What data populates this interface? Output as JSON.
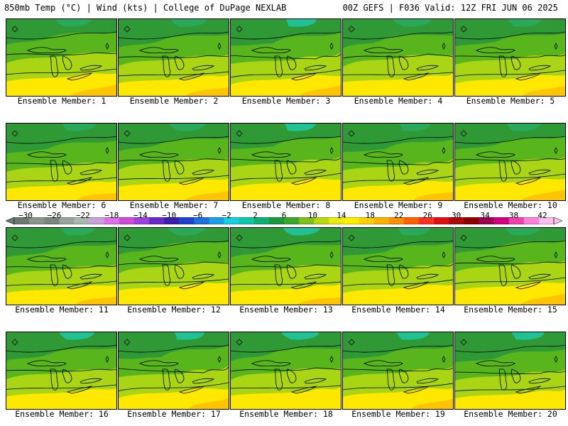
{
  "header": {
    "left": "850mb Temp (°C) | Wind (kts) | College of DuPage NEXLAB",
    "right": "00Z GEFS | F036 Valid: 12Z FRI JUN 06 2025"
  },
  "members": [
    {
      "label": "Ensemble Member: 1"
    },
    {
      "label": "Ensemble Member: 2"
    },
    {
      "label": "Ensemble Member: 3"
    },
    {
      "label": "Ensemble Member: 4"
    },
    {
      "label": "Ensemble Member: 5"
    },
    {
      "label": "Ensemble Member: 6"
    },
    {
      "label": "Ensemble Member: 7"
    },
    {
      "label": "Ensemble Member: 8"
    },
    {
      "label": "Ensemble Member: 9"
    },
    {
      "label": "Ensemble Member: 10"
    },
    {
      "label": "Ensemble Member: 11"
    },
    {
      "label": "Ensemble Member: 12"
    },
    {
      "label": "Ensemble Member: 13"
    },
    {
      "label": "Ensemble Member: 14"
    },
    {
      "label": "Ensemble Member: 15"
    },
    {
      "label": "Ensemble Member: 16"
    },
    {
      "label": "Ensemble Member: 17"
    },
    {
      "label": "Ensemble Member: 18"
    },
    {
      "label": "Ensemble Member: 19"
    },
    {
      "label": "Ensemble Member: 20"
    }
  ],
  "colorbar": {
    "labels": [
      "−30",
      "−26",
      "−22",
      "−18",
      "−14",
      "−10",
      "−6",
      "−2",
      "2",
      "6",
      "10",
      "14",
      "18",
      "22",
      "26",
      "30",
      "34",
      "38",
      "42"
    ],
    "colors": [
      "#6d7a6f",
      "#8a968c",
      "#7c8680",
      "#9aa39e",
      "#aab8b4",
      "#c9a0dc",
      "#e070e8",
      "#d04ad8",
      "#a040e0",
      "#6a28c8",
      "#3a20b0",
      "#2040d0",
      "#1e6fe0",
      "#1aa0e8",
      "#14d0e0",
      "#10c8a8",
      "#10b070",
      "#1a9a3a",
      "#3aa82a",
      "#7cc21a",
      "#b8d810",
      "#e8ec08",
      "#fff000",
      "#ffd000",
      "#ffb000",
      "#ff9000",
      "#ff6000",
      "#ff3020",
      "#e01010",
      "#b00808",
      "#900000",
      "#a00050",
      "#d00080",
      "#f040b0",
      "#ff80d8",
      "#ffc0f0"
    ]
  },
  "map_palette": {
    "dark_green": "#2f9a35",
    "green": "#58b51c",
    "yellow_green": "#a9d514",
    "yellow": "#ffe800",
    "orange": "#ffc400",
    "teal": "#1fc7a0",
    "outline": "#000000"
  }
}
